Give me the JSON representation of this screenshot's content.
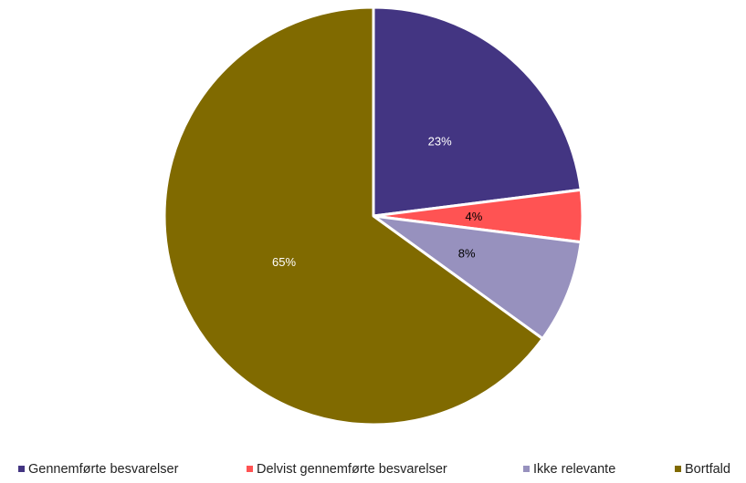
{
  "chart_data": {
    "type": "pie",
    "categories": [
      "Gennemførte besvarelser",
      "Delvist gennemførte besvarelser",
      "Ikke relevante",
      "Bortfald"
    ],
    "values": [
      23,
      4,
      8,
      65
    ],
    "labels": [
      "23%",
      "4%",
      "8%",
      "65%"
    ],
    "colors": [
      "#433582",
      "#ff5353",
      "#9791be",
      "#806a00"
    ],
    "label_colors": [
      "#ffffff",
      "#000000",
      "#000000",
      "#ffffff"
    ],
    "legend_position": "bottom",
    "start_angle": "12 o'clock",
    "direction": "clockwise"
  }
}
